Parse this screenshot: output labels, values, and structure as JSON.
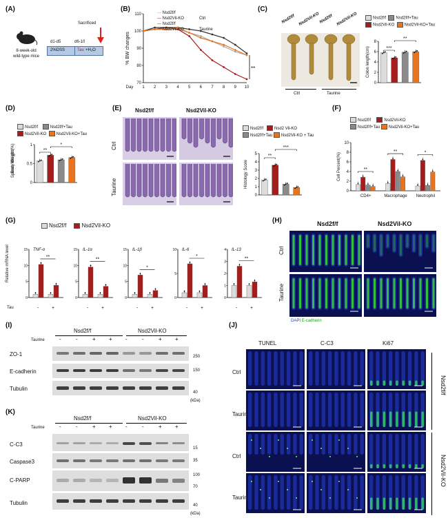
{
  "panels": {
    "A": {
      "label": "(A)",
      "mouse": "8-week-old\nwild-type mice",
      "d1": "d1-d5",
      "d2": "d6-10",
      "dss": "2%DSS",
      "tau": "Tau",
      "h2o": "+H₂O",
      "sac": "Sacrificed"
    },
    "B": {
      "label": "(B)",
      "ylabel": "% BW changes",
      "xlabel": "Day",
      "legend": [
        "Nsd2f/f",
        "Nsd2Vil-KO",
        "Nsd2f/f",
        "Nsd2Vil-KO"
      ],
      "grp_ctrl": "Ctrl",
      "grp_tau": "Taurine",
      "sig": "**"
    },
    "C": {
      "label": "(C)",
      "cols": [
        "Nsd2f/f",
        "Nsd2Vil-KO",
        "Nsd2f/f",
        "Nsd2Vil-KO"
      ],
      "legend": [
        "Nsd2f/f",
        "Nsd2Vil-KO",
        "Nsd2f/f+Tau",
        "Nsd2Vil-KO+Tau"
      ],
      "ylabel": "Colon length(cm)",
      "ctrl": "Ctrl",
      "taurine": "Taurine",
      "sig1": "***",
      "sig2": "**"
    },
    "D": {
      "label": "(D)",
      "legend": [
        "Nsd2f/f",
        "Nsd2Vil-KO",
        "Nsd2f/f+Tau",
        "Nsd2Vil-KO+Tau"
      ],
      "ylabel": "Spleen Weight /\nBody Weight(%)",
      "sig1": "**",
      "sig2": "*"
    },
    "E": {
      "label": "(E)",
      "col1": "Nsd2f/f",
      "col2": "Nsd2Vil-KO",
      "row1": "Ctrl",
      "row2": "Taurine",
      "legend": [
        "Nsd2f/f",
        "Nsd2 Vil-KO",
        "Nsd2f/f+Tau",
        "Nsd2Vil-KO + Tau"
      ],
      "ylabel": "Histology Score",
      "sig1": "**",
      "sig2": "***"
    },
    "F": {
      "label": "(F)",
      "legend": [
        "Nsd2f/f",
        "Nsd2Vil-KO",
        "Nsd2f/f+Tau",
        "Nsd2Vil-KO+Tau"
      ],
      "ylabel": "Cell Percent(%)",
      "cats": [
        "CD4+",
        "Macrophage",
        "Neutrophil"
      ],
      "sigs": [
        "**",
        "**",
        "*"
      ]
    },
    "G": {
      "label": "(G)",
      "legend": [
        "Nsd2f/f",
        "Nsd2Vil-KO"
      ],
      "ylabel": "Relative mRNA level",
      "genes": [
        "TNF-α",
        "IL-1α",
        "IL-1β",
        "IL-6",
        "IL-13"
      ],
      "sigs": [
        "**",
        "**",
        "*",
        "*",
        "**"
      ],
      "tau": "Tau",
      "minus": "-",
      "plus": "+"
    },
    "H": {
      "label": "(H)",
      "col1": "Nsd2f/f",
      "col2": "Nsd2Vil-KO",
      "row1": "Ctrl",
      "row2": "Taurine",
      "dapi": "DAPI",
      "ecad": "E-cadherin"
    },
    "I": {
      "label": "(I)",
      "g1": "Nsd2f/f",
      "g2": "Nsd2Vil-KO",
      "taurine": "Taurine",
      "rows": [
        "ZO-1",
        "E-cadherin",
        "Tubulin"
      ],
      "kda": [
        "250",
        "150",
        "40"
      ],
      "unit": "(kDa)",
      "signs": [
        "-",
        "-",
        "+",
        "+",
        "-",
        "-",
        "+",
        "+"
      ]
    },
    "J": {
      "label": "(J)",
      "cols": [
        "TUNEL",
        "C-C3",
        "Ki67"
      ],
      "rows": [
        "Ctrl",
        "Taurine",
        "Ctrl",
        "Taurine"
      ],
      "g1": "Nsd2f/f",
      "g2": "Nsd2Vil-KO"
    },
    "K": {
      "label": "(K)",
      "g1": "Nsd2f/f",
      "g2": "Nsd2Vil-KO",
      "taurine": "Taurine",
      "rows": [
        "C-C3",
        "Caspase3",
        "C-PARP",
        "Tubulin"
      ],
      "kda": [
        "15",
        "35",
        "100",
        "70",
        "40"
      ],
      "unit": "(kDa)",
      "signs": [
        "-",
        "-",
        "+",
        "+",
        "-",
        "-",
        "+",
        "+"
      ]
    }
  },
  "colors": {
    "wt": "#dcdcdc",
    "ko": "#a51c1c",
    "wttau": "#8a8a8a",
    "kotau": "#e8741e"
  },
  "chart_data": [
    {
      "type": "line",
      "panel": "B",
      "xlabel": "Day",
      "ylabel": "% BW changes",
      "x": [
        1,
        2,
        3,
        4,
        5,
        6,
        7,
        8,
        9,
        10
      ],
      "ylim": [
        70,
        110
      ],
      "series": [
        {
          "name": "Nsd2f/f (Ctrl)",
          "values": [
            100,
            101,
            101,
            101,
            99,
            97,
            94,
            91,
            88,
            86
          ]
        },
        {
          "name": "Nsd2Vil-KO (Ctrl)",
          "values": [
            100,
            101,
            102,
            101,
            97,
            89,
            83,
            79,
            75,
            72
          ]
        },
        {
          "name": "Nsd2f/f (Taurine)",
          "values": [
            100,
            102,
            102,
            102,
            101,
            100,
            98,
            96,
            92,
            87
          ]
        },
        {
          "name": "Nsd2Vil-KO (Taurine)",
          "values": [
            100,
            101,
            101,
            102,
            99,
            96,
            94,
            92,
            89,
            86
          ]
        }
      ]
    },
    {
      "type": "bar",
      "panel": "C",
      "ylabel": "Colon length(cm)",
      "ylim": [
        0,
        8
      ],
      "categories": [
        "Nsd2f/f",
        "Nsd2Vil-KO",
        "Nsd2f/f+Tau",
        "Nsd2Vil-KO+Tau"
      ],
      "values": [
        5.8,
        4.8,
        5.9,
        6.0
      ]
    },
    {
      "type": "bar",
      "panel": "D",
      "ylabel": "Spleen Weight / Body Weight(%)",
      "ylim": [
        0,
        1.0
      ],
      "categories": [
        "Nsd2f/f",
        "Nsd2Vil-KO",
        "Nsd2f/f+Tau",
        "Nsd2Vil-KO+Tau"
      ],
      "values": [
        0.57,
        0.72,
        0.6,
        0.66
      ]
    },
    {
      "type": "bar",
      "panel": "E",
      "ylabel": "Histology Score",
      "ylim": [
        0,
        5
      ],
      "categories": [
        "Nsd2f/f",
        "Nsd2Vil-KO",
        "Nsd2f/f+Tau",
        "Nsd2Vil-KO+Tau"
      ],
      "values": [
        1.8,
        3.6,
        1.3,
        0.9
      ]
    },
    {
      "type": "bar",
      "panel": "F",
      "ylabel": "Cell Percent(%)",
      "ylim": [
        0,
        10
      ],
      "categories": [
        "CD4+",
        "Macrophage",
        "Neutrophil"
      ],
      "series": [
        {
          "name": "Nsd2f/f",
          "values": [
            1.3,
            1.5,
            1.0
          ]
        },
        {
          "name": "Nsd2Vil-KO",
          "values": [
            2.8,
            6.5,
            6.3
          ]
        },
        {
          "name": "Nsd2f/f+Tau",
          "values": [
            1.2,
            4.0,
            1.1
          ]
        },
        {
          "name": "Nsd2Vil-KO+Tau",
          "values": [
            0.9,
            2.9,
            3.9
          ]
        }
      ]
    },
    {
      "type": "bar",
      "panel": "G",
      "ylabel": "Relative mRNA level",
      "genes": [
        "TNF-α",
        "IL-1α",
        "IL-1β",
        "IL-6",
        "IL-13"
      ],
      "series": [
        {
          "name": "Nsd2f/f",
          "values": [
            [
              1,
              1
            ],
            [
              1,
              1
            ],
            [
              1,
              1
            ],
            [
              1,
              1
            ],
            [
              1,
              1
            ]
          ]
        },
        {
          "name": "Nsd2Vil-KO",
          "values": [
            [
              10.3,
              3.8
            ],
            [
              9.5,
              3.5
            ],
            [
              7,
              2.2
            ],
            [
              7,
              2.5
            ],
            [
              2.6,
              1.3
            ]
          ]
        }
      ],
      "ylims": [
        [
          0,
          15
        ],
        [
          0,
          15
        ],
        [
          0,
          15
        ],
        [
          0,
          10
        ],
        [
          0,
          4
        ]
      ]
    }
  ]
}
